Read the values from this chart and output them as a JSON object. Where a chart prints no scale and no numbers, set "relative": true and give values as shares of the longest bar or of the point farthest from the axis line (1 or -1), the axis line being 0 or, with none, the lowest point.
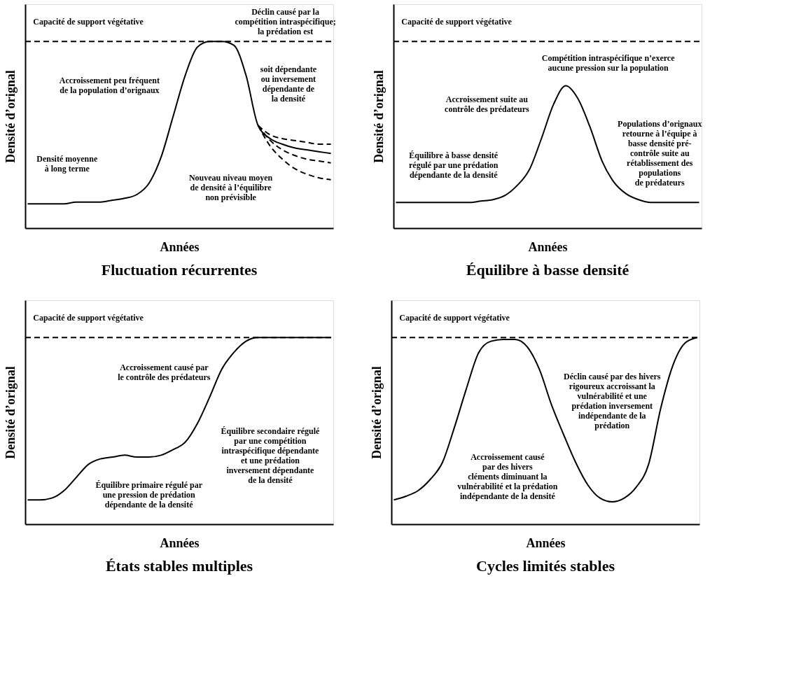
{
  "chart_data": [
    {
      "type": "line",
      "relative": true,
      "title": "Fluctuation récurrentes",
      "xlabel": "Années",
      "ylabel": "Densité d’orignal",
      "tick_labels": false,
      "categories": [
        null,
        null,
        null,
        null,
        null,
        null,
        null,
        null,
        null,
        null,
        null,
        null,
        null,
        null,
        null,
        null,
        null,
        null,
        null,
        null,
        null,
        null,
        null,
        null,
        null,
        null
      ],
      "series": [
        {
          "color": "#000000",
          "line_style": "solid",
          "values": [
            0.13,
            0.13,
            0.13,
            0.13,
            0.14,
            0.14,
            0.14,
            0.15,
            0.16,
            0.18,
            0.24,
            0.38,
            0.6,
            0.82,
            0.97,
            1.0,
            1.0,
            0.98,
            0.82,
            0.55,
            0.48,
            0.45,
            0.43,
            0.42,
            0.41,
            0.4
          ]
        },
        {
          "color": "#000000",
          "line_style": "dashed",
          "values": [
            null,
            null,
            null,
            null,
            null,
            null,
            null,
            null,
            null,
            null,
            null,
            null,
            null,
            null,
            null,
            null,
            null,
            null,
            null,
            0.55,
            0.5,
            0.48,
            0.47,
            0.46,
            0.45,
            0.45
          ]
        },
        {
          "color": "#000000",
          "line_style": "dashed",
          "values": [
            null,
            null,
            null,
            null,
            null,
            null,
            null,
            null,
            null,
            null,
            null,
            null,
            null,
            null,
            null,
            null,
            null,
            null,
            null,
            0.55,
            0.47,
            0.42,
            0.39,
            0.37,
            0.36,
            0.35
          ]
        },
        {
          "color": "#000000",
          "line_style": "dashed",
          "values": [
            null,
            null,
            null,
            null,
            null,
            null,
            null,
            null,
            null,
            null,
            null,
            null,
            null,
            null,
            null,
            null,
            null,
            null,
            null,
            0.55,
            0.44,
            0.37,
            0.32,
            0.29,
            0.27,
            0.26
          ]
        }
      ],
      "ref_lines": [
        {
          "axis": "y",
          "value": 1.0,
          "label": "Capacité de support végétative",
          "line_style": "dashed"
        }
      ],
      "annotations": [
        "Déclin causé par la\ncompétition intraspécifique;\nla prédation est",
        "soit dépendante\nou inversement\ndépendante de\nla densité",
        "Accroissement peu fréquent\nde la population d’orignaux",
        "Densité moyenne\nà long terme",
        "Nouveau niveau moyen\nde densité à l’équilibre\nnon prévisible"
      ]
    },
    {
      "type": "line",
      "relative": true,
      "title": "Équilibre à basse densité",
      "xlabel": "Années",
      "ylabel": "Densité d’orignal",
      "tick_labels": false,
      "categories": [
        null,
        null,
        null,
        null,
        null,
        null,
        null,
        null,
        null,
        null,
        null,
        null,
        null,
        null,
        null,
        null,
        null,
        null,
        null,
        null,
        null,
        null,
        null,
        null,
        null,
        null
      ],
      "series": [
        {
          "color": "#000000",
          "line_style": "solid",
          "values": [
            0.18,
            0.18,
            0.18,
            0.18,
            0.18,
            0.18,
            0.18,
            0.19,
            0.2,
            0.23,
            0.3,
            0.41,
            0.63,
            0.87,
            1.0,
            0.91,
            0.71,
            0.47,
            0.32,
            0.24,
            0.2,
            0.18,
            0.18,
            0.18,
            0.18,
            0.18
          ]
        }
      ],
      "ref_lines": [
        {
          "axis": "y",
          "value": 1.31,
          "label": "Capacité de support végétative",
          "line_style": "dashed"
        }
      ],
      "annotations": [
        "Compétition intraspécifique n’exerce\naucune pression sur la population",
        "Accroissement suite au\ncontrôle des prédateurs",
        "Populations d’orignaux\nretourne à l’équipe à\nbasse densité pré-\ncontrôle suite au\nrétablissement des\npopulations\nde prédateurs",
        "Équilibre à basse densité\nrégulé par une prédation\ndépendante de la densité"
      ]
    },
    {
      "type": "line",
      "relative": true,
      "title": "États stables multiples",
      "xlabel": "Années",
      "ylabel": "Densité d’orignal",
      "tick_labels": false,
      "categories": [
        null,
        null,
        null,
        null,
        null,
        null,
        null,
        null,
        null,
        null,
        null,
        null,
        null,
        null,
        null,
        null,
        null,
        null,
        null,
        null,
        null,
        null,
        null,
        null,
        null,
        null
      ],
      "series": [
        {
          "color": "#000000",
          "line_style": "solid",
          "values": [
            0.13,
            0.13,
            0.14,
            0.18,
            0.25,
            0.32,
            0.35,
            0.36,
            0.37,
            0.36,
            0.36,
            0.37,
            0.4,
            0.44,
            0.54,
            0.68,
            0.83,
            0.92,
            0.98,
            1.0,
            1.0,
            1.0,
            1.0,
            1.0,
            1.0,
            1.0
          ]
        }
      ],
      "ref_lines": [
        {
          "axis": "y",
          "value": 1.0,
          "label": "Capacité de support végétative",
          "line_style": "dashed"
        }
      ],
      "annotations": [
        "Accroissement causé par\nle contrôle des prédateurs",
        "Équilibre secondaire régulé\npar une compétition\nintraspécifique dépendante\net une prédation\ninversement dépendante\nde la densité",
        "Équilibre primaire régulé par\nune pression de prédation\ndépendante de la densité"
      ]
    },
    {
      "type": "line",
      "relative": true,
      "title": "Cycles limités stables",
      "xlabel": "Années",
      "ylabel": "Densité d’orignal",
      "tick_labels": false,
      "categories": [
        null,
        null,
        null,
        null,
        null,
        null,
        null,
        null,
        null,
        null,
        null,
        null,
        null,
        null,
        null,
        null,
        null,
        null,
        null,
        null,
        null,
        null,
        null,
        null,
        null,
        null
      ],
      "series": [
        {
          "color": "#000000",
          "line_style": "solid",
          "values": [
            0.13,
            0.15,
            0.18,
            0.24,
            0.33,
            0.52,
            0.73,
            0.92,
            0.98,
            0.99,
            0.99,
            0.95,
            0.83,
            0.64,
            0.48,
            0.33,
            0.21,
            0.14,
            0.12,
            0.14,
            0.2,
            0.32,
            0.62,
            0.85,
            0.97,
            1.0
          ]
        }
      ],
      "ref_lines": [
        {
          "axis": "y",
          "value": 1.0,
          "label": "Capacité de support végétative",
          "line_style": "dashed"
        }
      ],
      "annotations": [
        "Déclin causé par des hivers\nrigoureux accroissant la\nvulnérabilité et une\nprédation inversement\nindépendante de la\nprédation",
        "Accroissement causé\npar des hivers\ncléments diminuant la\nvulnérabilité et la prédation\nindépendante de la densité"
      ]
    }
  ]
}
